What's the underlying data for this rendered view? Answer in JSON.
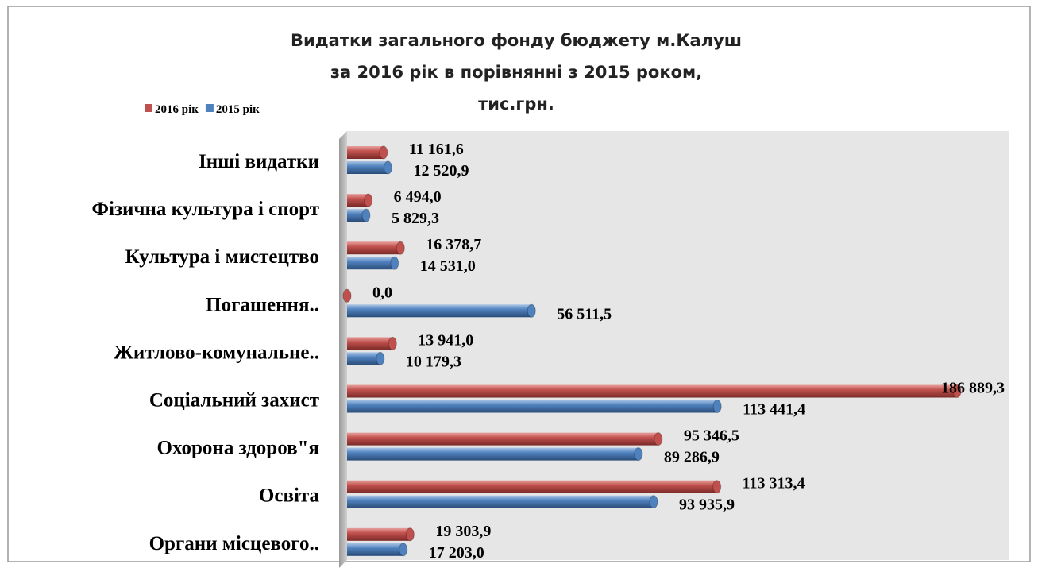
{
  "chart_data": {
    "type": "bar",
    "orientation": "horizontal",
    "title": [
      "Видатки загального фонду бюджету м.Калуш",
      "за 2016 рік в порівнянні з 2015 роком,",
      "тис.грн."
    ],
    "categories": [
      "Інші видатки",
      "Фізична культура і спорт",
      "Культура і мистецтво",
      "Погашення..",
      "Житлово-комунальне..",
      "Соціальний захист",
      "Охорона здоров\"я",
      "Освіта",
      "Органи місцевого.."
    ],
    "series": [
      {
        "name": "2016 рік",
        "color": "#c0504d",
        "values": [
          11161.6,
          6494.0,
          16378.7,
          0.0,
          13941.0,
          186889.3,
          95346.5,
          113313.4,
          19303.9
        ],
        "value_labels": [
          "11 161,6",
          "6 494,0",
          "16 378,7",
          "0,0",
          "13 941,0",
          "186 889,3",
          "95 346,5",
          "113 313,4",
          "19 303,9"
        ]
      },
      {
        "name": "2015 рік",
        "color": "#4f81bd",
        "values": [
          12520.9,
          5829.3,
          14531.0,
          56511.5,
          10179.3,
          113441.4,
          89286.9,
          93935.9,
          17203.0
        ],
        "value_labels": [
          "12 520,9",
          "5 829,3",
          "14 531,0",
          "56 511,5",
          "10 179,3",
          "113 441,4",
          "89 286,9",
          "93 935,9",
          "17 203,0"
        ]
      }
    ],
    "legend": "top-left"
  }
}
